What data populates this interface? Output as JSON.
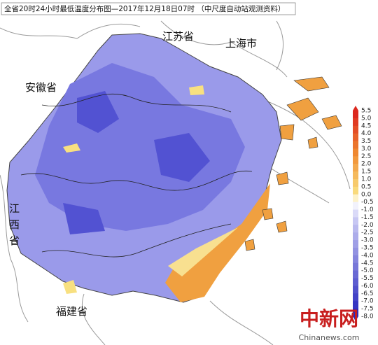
{
  "title": "全省20时24小时最低温度分布图—2017年12月18日07时 （中尺度自动站观测资料）",
  "regions": {
    "jiangsu": "江苏省",
    "shanghai": "上海市",
    "anhui": "安徽省",
    "jiangxi": "江西省",
    "fujian": "福建省"
  },
  "colorbar": {
    "labels": [
      "5.5",
      "5.0",
      "4.5",
      "4.0",
      "3.5",
      "3.0",
      "2.5",
      "2.0",
      "1.5",
      "1.0",
      "0.5",
      "0.0",
      "-0.5",
      "-1.0",
      "-1.5",
      "-2.0",
      "-2.5",
      "-3.0",
      "-3.5",
      "-4.0",
      "-4.5",
      "-5.0",
      "-5.5",
      "-6.0",
      "-6.5",
      "-7.0",
      "-7.5",
      "-8.0"
    ]
  },
  "watermark": {
    "logo": "中新网",
    "site": "Chinanews.com"
  }
}
